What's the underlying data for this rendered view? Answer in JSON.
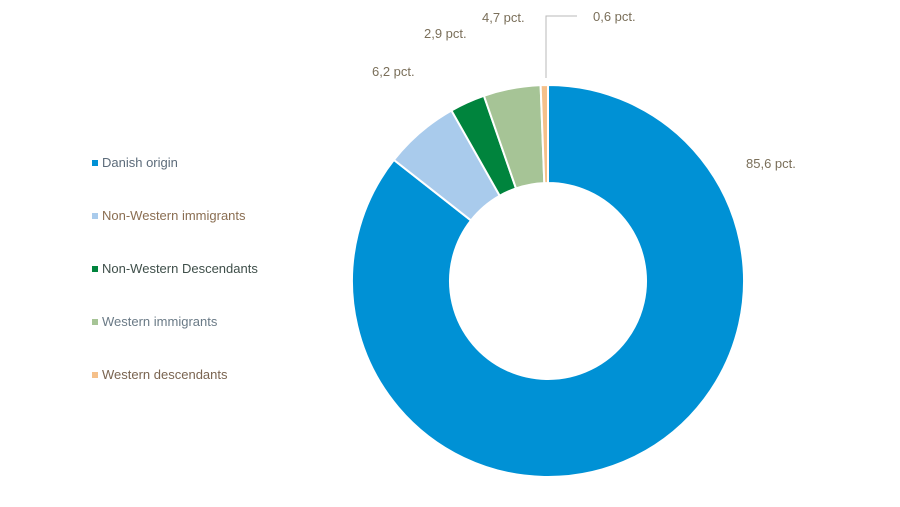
{
  "chart_data": {
    "type": "pie",
    "variant": "donut",
    "categories": [
      "Danish origin",
      "Non-Western immigrants",
      "Non-Western Descendants",
      "Western immigrants",
      "Western descendants"
    ],
    "values": [
      85.6,
      6.2,
      2.9,
      4.7,
      0.6
    ],
    "value_labels": [
      "85,6 pct.",
      "6,2 pct.",
      "2,9 pct.",
      "4,7 pct.",
      "0,6 pct."
    ],
    "colors": [
      "#0091d5",
      "#a9cbec",
      "#00843d",
      "#a6c496",
      "#f5c08a"
    ],
    "legend_label_colors": [
      "#5c6b7a",
      "#8a6e52",
      "#3f4f4a",
      "#6a7a86",
      "#7a6450"
    ],
    "legend_position": "left",
    "title": ""
  }
}
